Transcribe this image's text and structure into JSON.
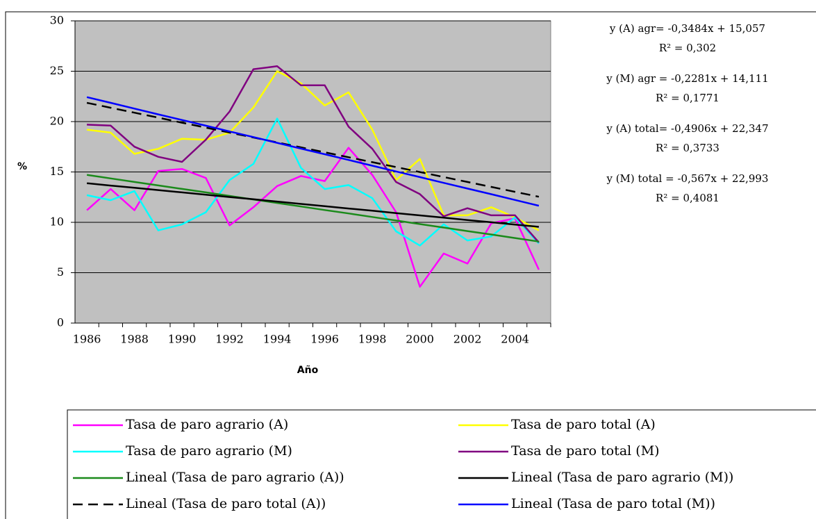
{
  "chart_data": {
    "type": "line",
    "categories": [
      1986,
      null,
      1988,
      null,
      1990,
      null,
      1992,
      null,
      1994,
      null,
      1996,
      null,
      1998,
      null,
      2000,
      null,
      2002,
      null,
      2004,
      null
    ],
    "ylim": [
      0,
      30
    ],
    "yticks": [
      0,
      5,
      10,
      15,
      20,
      25,
      30
    ],
    "grid": true,
    "y_label": "%",
    "x_label": "Año",
    "series": [
      {
        "name": "Tasa de paro agrario (A)",
        "color": "#ff00ff",
        "values": [
          11.2,
          13.3,
          11.2,
          15.1,
          15.3,
          14.4,
          9.7,
          11.5,
          13.6,
          14.6,
          14.1,
          17.4,
          14.7,
          11.0,
          3.6,
          6.9,
          5.9,
          9.9,
          10.4,
          5.3
        ]
      },
      {
        "name": "Tasa de paro total (A)",
        "color": "#ffff00",
        "values": [
          19.2,
          18.9,
          16.8,
          17.3,
          18.3,
          18.2,
          18.9,
          21.4,
          25.0,
          23.8,
          21.6,
          22.9,
          19.2,
          14.2,
          16.3,
          10.7,
          10.7,
          11.5,
          10.5,
          9.2
        ]
      },
      {
        "name": "Tasa de paro agrario (M)",
        "color": "#00ffff",
        "values": [
          12.7,
          12.2,
          13.1,
          9.2,
          9.8,
          11.0,
          14.2,
          15.8,
          20.3,
          15.4,
          13.3,
          13.7,
          12.4,
          9.1,
          7.7,
          9.8,
          8.2,
          8.6,
          10.5,
          7.9
        ]
      },
      {
        "name": "Tasa de paro total (M)",
        "color": "#800080",
        "values": [
          19.7,
          19.6,
          17.5,
          16.5,
          16.0,
          18.2,
          21.0,
          25.2,
          25.5,
          23.6,
          23.6,
          19.5,
          17.3,
          14.0,
          12.8,
          10.6,
          11.4,
          10.7,
          10.7,
          8.0
        ]
      },
      {
        "name": "Lineal (Tasa de paro agrario (A))",
        "color": "#1a8a1a",
        "values": [
          14.71,
          14.36,
          14.01,
          13.66,
          13.32,
          12.97,
          12.62,
          12.27,
          11.92,
          11.57,
          11.22,
          10.88,
          10.53,
          10.18,
          9.83,
          9.48,
          9.13,
          8.79,
          8.44,
          8.09
        ]
      },
      {
        "name": "Lineal (Tasa de paro agrario (M))",
        "color": "#000000",
        "values": [
          13.88,
          13.65,
          13.43,
          13.2,
          12.97,
          12.74,
          12.51,
          12.29,
          12.06,
          11.83,
          11.6,
          11.37,
          11.15,
          10.92,
          10.69,
          10.46,
          10.23,
          10.01,
          9.78,
          9.55
        ]
      },
      {
        "name": "Lineal (Tasa de paro total (A))",
        "color": "#000000",
        "dashed": true,
        "values": [
          21.86,
          21.37,
          20.88,
          20.39,
          19.89,
          19.4,
          18.91,
          18.42,
          17.93,
          17.44,
          16.95,
          16.46,
          15.97,
          15.48,
          14.99,
          14.5,
          14.01,
          13.52,
          13.03,
          12.54
        ]
      },
      {
        "name": "Lineal (Tasa de paro total (M))",
        "color": "#0000ff",
        "values": [
          22.43,
          21.86,
          21.29,
          20.72,
          20.16,
          19.59,
          19.02,
          18.46,
          17.89,
          17.32,
          16.76,
          16.19,
          15.62,
          15.05,
          14.49,
          13.92,
          13.35,
          12.79,
          12.22,
          11.65
        ]
      }
    ],
    "annotations": [
      "y (A) agr= -0,3484x + 15,057",
      "R² = 0,302",
      "y (M) agr = -0,2281x + 14,111",
      "R² = 0,1771",
      "y (A) total= -0,4906x + 22,347",
      "R² = 0,3733",
      "y (M) total = -0,567x + 22,993",
      "R² = 0,4081"
    ]
  }
}
